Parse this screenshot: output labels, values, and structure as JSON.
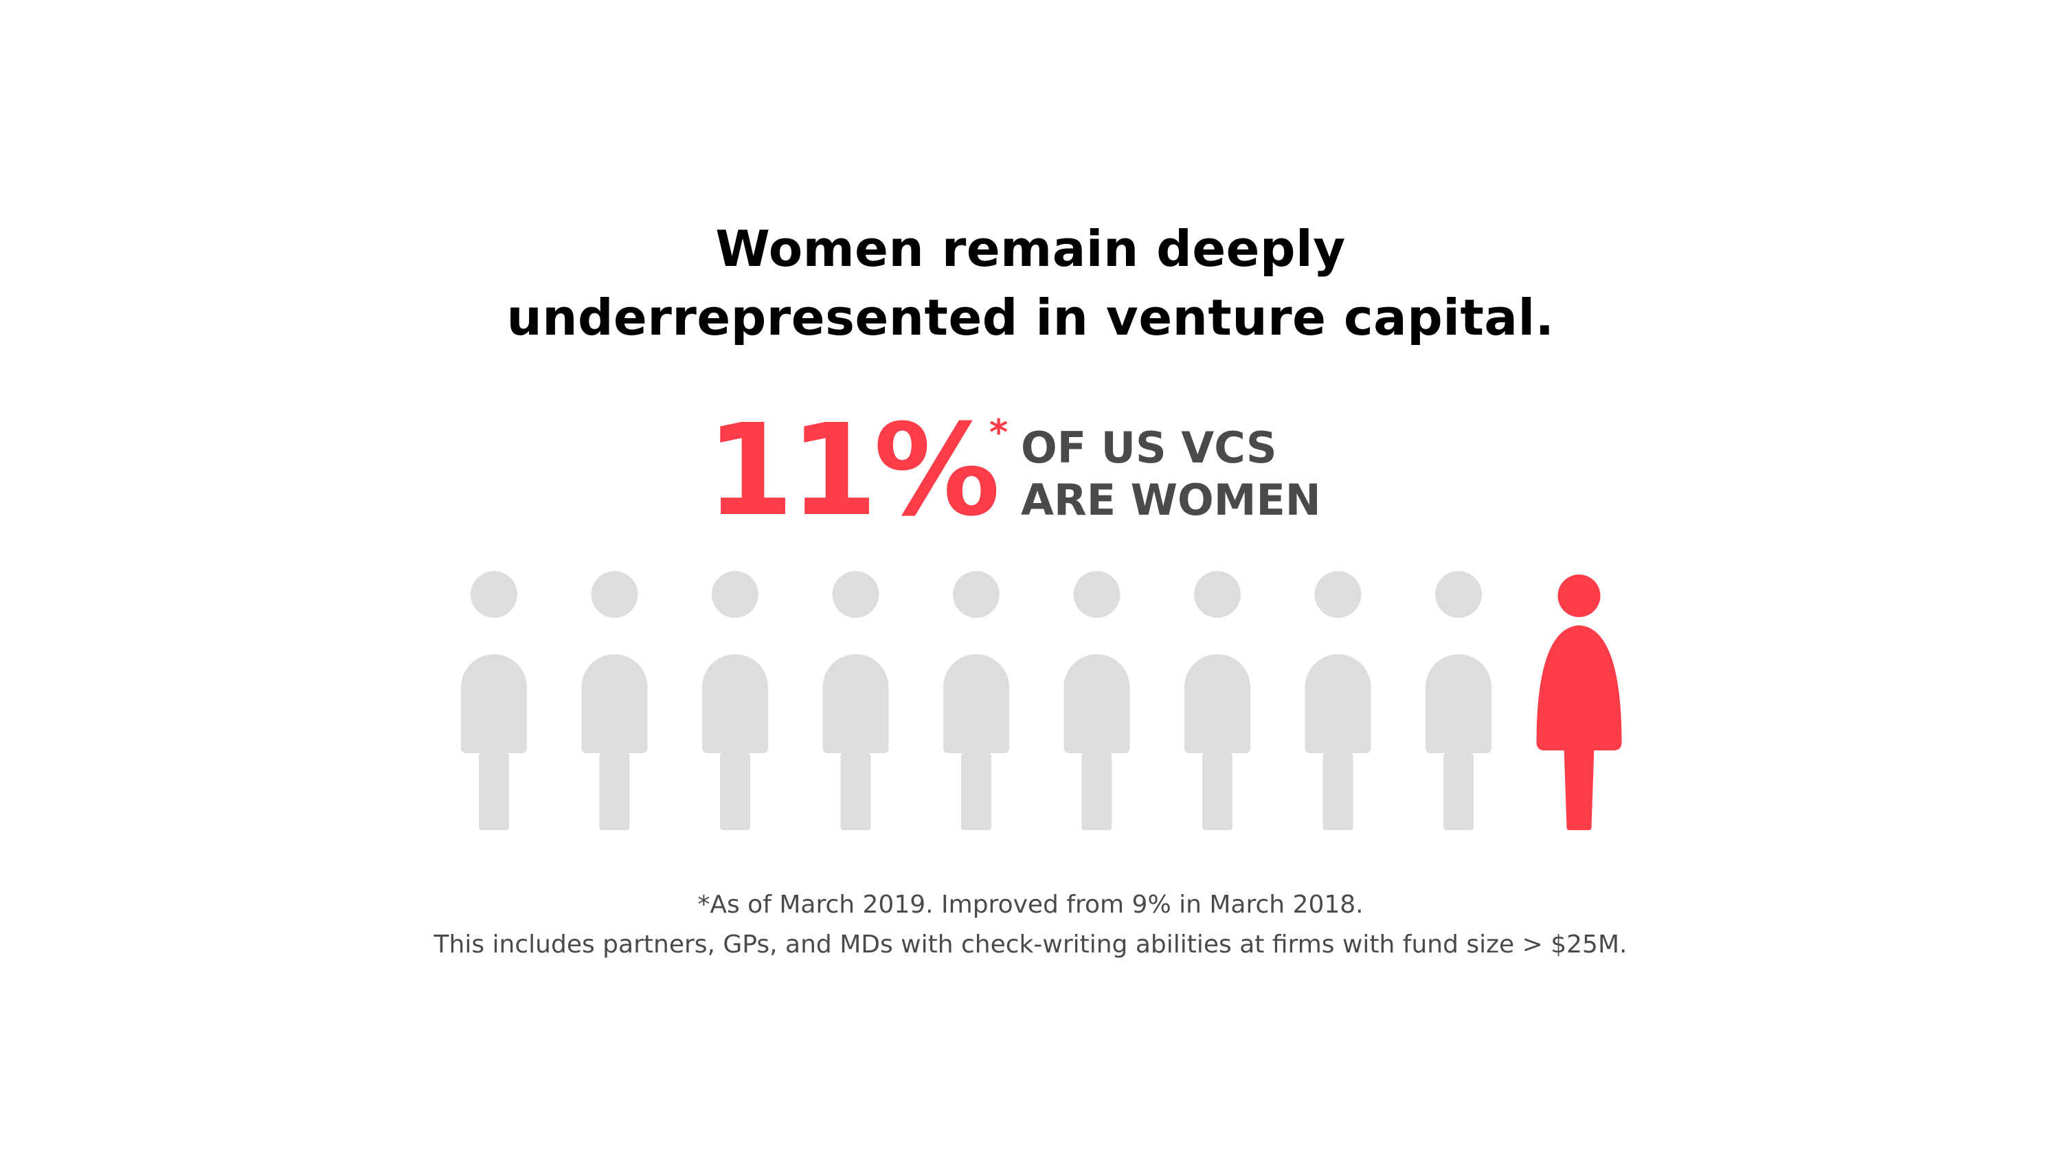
{
  "headline": {
    "line1": "Women remain deeply",
    "line2": "underrepresented in venture capital."
  },
  "stat": {
    "number": "11%",
    "asterisk": "*",
    "caption_line1": "OF US VCS",
    "caption_line2": "ARE WOMEN"
  },
  "figures": {
    "total": 10,
    "highlighted": 1,
    "icon_gray": "person-icon",
    "icon_highlight": "woman-icon",
    "gray_color": "#dddddd",
    "highlight_color": "#fc3d49"
  },
  "footnote": {
    "line1": "*As of March 2019. Improved from 9% in March 2018.",
    "line2": "This includes partners, GPs, and MDs with check-writing abilities at firms with fund size > $25M."
  }
}
